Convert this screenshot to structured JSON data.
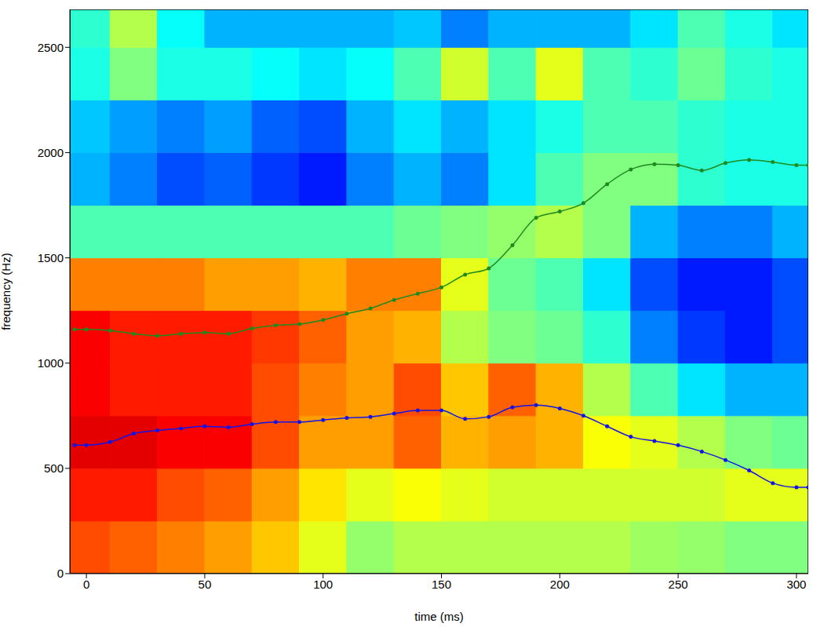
{
  "chart_data": {
    "type": "line",
    "x_label": "time (ms)",
    "y_label": "frequency (Hz)",
    "xlim": [
      -7,
      305
    ],
    "ylim": [
      0,
      2680
    ],
    "xticks": [
      0,
      50,
      100,
      150,
      200,
      250,
      300
    ],
    "yticks": [
      0,
      500,
      1000,
      1500,
      2000,
      2500
    ],
    "grid": false,
    "series": [
      {
        "color": "#1f8a1f",
        "marker": "circle",
        "line_style": "solid",
        "x": [
          -5,
          0,
          10,
          20,
          30,
          40,
          50,
          60,
          70,
          80,
          90,
          100,
          110,
          120,
          130,
          140,
          150,
          160,
          170,
          180,
          190,
          200,
          210,
          220,
          230,
          240,
          250,
          260,
          270,
          280,
          290,
          300,
          305
        ],
        "values": [
          1160,
          1160,
          1155,
          1140,
          1130,
          1140,
          1145,
          1140,
          1165,
          1180,
          1185,
          1205,
          1235,
          1260,
          1300,
          1330,
          1360,
          1420,
          1450,
          1560,
          1690,
          1720,
          1760,
          1850,
          1920,
          1945,
          1940,
          1915,
          1950,
          1965,
          1955,
          1940,
          1940
        ]
      },
      {
        "color": "#1414e6",
        "marker": "circle",
        "line_style": "solid",
        "x": [
          -5,
          0,
          10,
          20,
          30,
          40,
          50,
          60,
          70,
          80,
          90,
          100,
          110,
          120,
          130,
          140,
          150,
          160,
          170,
          180,
          190,
          200,
          210,
          220,
          230,
          240,
          250,
          260,
          270,
          280,
          290,
          300,
          305
        ],
        "values": [
          610,
          610,
          625,
          665,
          680,
          690,
          700,
          695,
          710,
          720,
          720,
          730,
          740,
          745,
          760,
          775,
          775,
          735,
          745,
          790,
          800,
          785,
          750,
          700,
          650,
          630,
          610,
          580,
          540,
          490,
          430,
          410,
          410
        ]
      }
    ],
    "heatmap": {
      "clim": [
        0,
        1
      ],
      "x_edges": [
        -7,
        10,
        30,
        50,
        70,
        90,
        110,
        130,
        150,
        170,
        190,
        210,
        230,
        250,
        270,
        290,
        305
      ],
      "y_edges": [
        0,
        250,
        500,
        750,
        1000,
        1250,
        1500,
        1750,
        2000,
        2250,
        2500,
        2680
      ],
      "cells": [
        [
          0.8,
          0.78,
          0.75,
          0.72,
          0.68,
          0.6,
          0.52,
          0.55,
          0.55,
          0.55,
          0.55,
          0.55,
          0.53,
          0.52,
          0.5,
          0.5
        ],
        [
          0.85,
          0.85,
          0.8,
          0.78,
          0.72,
          0.65,
          0.6,
          0.62,
          0.6,
          0.58,
          0.58,
          0.58,
          0.58,
          0.58,
          0.6,
          0.6
        ],
        [
          0.9,
          0.9,
          0.88,
          0.88,
          0.8,
          0.72,
          0.72,
          0.78,
          0.7,
          0.72,
          0.7,
          0.62,
          0.6,
          0.55,
          0.5,
          0.48
        ],
        [
          0.88,
          0.85,
          0.85,
          0.85,
          0.8,
          0.75,
          0.72,
          0.8,
          0.68,
          0.78,
          0.7,
          0.55,
          0.45,
          0.35,
          0.3,
          0.3
        ],
        [
          0.88,
          0.85,
          0.85,
          0.85,
          0.82,
          0.78,
          0.72,
          0.7,
          0.55,
          0.5,
          0.48,
          0.42,
          0.25,
          0.18,
          0.15,
          0.2
        ],
        [
          0.75,
          0.75,
          0.75,
          0.72,
          0.72,
          0.7,
          0.75,
          0.75,
          0.6,
          0.48,
          0.45,
          0.35,
          0.2,
          0.15,
          0.15,
          0.2
        ],
        [
          0.45,
          0.45,
          0.45,
          0.45,
          0.45,
          0.45,
          0.45,
          0.48,
          0.5,
          0.52,
          0.55,
          0.5,
          0.3,
          0.25,
          0.25,
          0.3
        ],
        [
          0.3,
          0.25,
          0.2,
          0.22,
          0.18,
          0.15,
          0.25,
          0.3,
          0.25,
          0.35,
          0.45,
          0.5,
          0.5,
          0.42,
          0.4,
          0.4
        ],
        [
          0.32,
          0.28,
          0.25,
          0.28,
          0.22,
          0.2,
          0.3,
          0.35,
          0.3,
          0.35,
          0.4,
          0.45,
          0.45,
          0.42,
          0.4,
          0.4
        ],
        [
          0.4,
          0.5,
          0.4,
          0.4,
          0.38,
          0.35,
          0.38,
          0.45,
          0.58,
          0.45,
          0.6,
          0.45,
          0.42,
          0.48,
          0.42,
          0.4
        ],
        [
          0.42,
          0.55,
          0.38,
          0.3,
          0.3,
          0.3,
          0.3,
          0.32,
          0.25,
          0.3,
          0.3,
          0.3,
          0.35,
          0.45,
          0.4,
          0.35
        ]
      ]
    }
  }
}
